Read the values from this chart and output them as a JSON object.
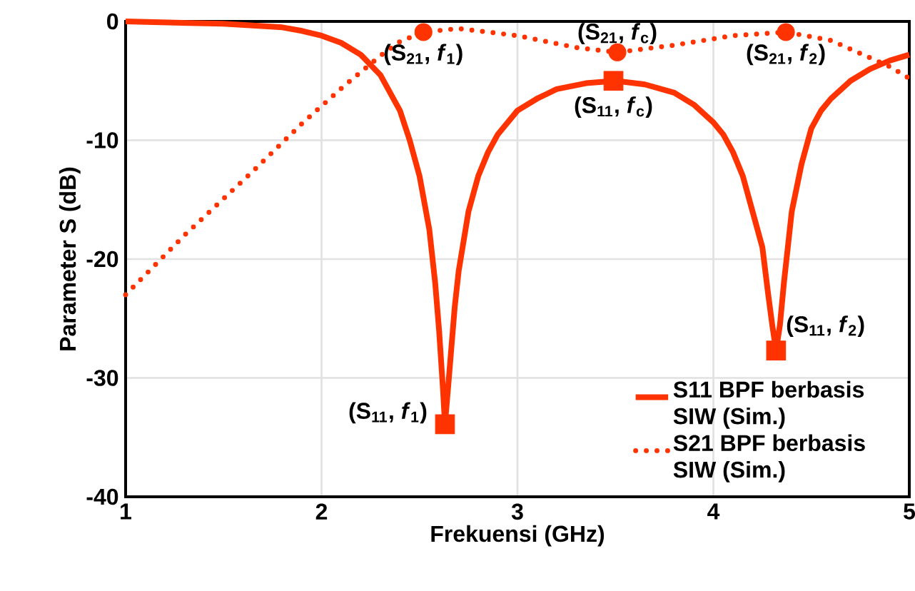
{
  "chart_data": {
    "type": "line",
    "xlabel": "Frekuensi (GHz)",
    "ylabel": "Parameter S (dB)",
    "xlim": [
      1,
      5
    ],
    "ylim": [
      -40,
      0
    ],
    "xticks": [
      1,
      2,
      3,
      4,
      5
    ],
    "yticks": [
      -40,
      -30,
      -20,
      -10,
      0
    ],
    "grid": true,
    "legend": "bottom right",
    "series": [
      {
        "name": "S11 BPF berbasis SIW (Sim.)",
        "color": "#ff3300",
        "line_style": "solid",
        "marker": "none",
        "x": [
          1,
          1.5,
          1.8,
          1.9,
          2.0,
          2.1,
          2.2,
          2.3,
          2.4,
          2.45,
          2.5,
          2.55,
          2.58,
          2.6,
          2.62,
          2.63,
          2.645,
          2.66,
          2.68,
          2.7,
          2.75,
          2.8,
          2.85,
          2.9,
          3.0,
          3.1,
          3.2,
          3.35,
          3.5,
          3.65,
          3.8,
          3.9,
          4.0,
          4.05,
          4.1,
          4.15,
          4.2,
          4.25,
          4.28,
          4.3,
          4.32,
          4.34,
          4.36,
          4.38,
          4.4,
          4.45,
          4.5,
          4.55,
          4.6,
          4.7,
          4.8,
          4.9,
          5.0
        ],
        "values": [
          0,
          -0.2,
          -0.5,
          -0.8,
          -1.2,
          -1.8,
          -2.8,
          -4.5,
          -7.5,
          -10,
          -13,
          -17.5,
          -22,
          -26,
          -31,
          -33.9,
          -31,
          -28,
          -24,
          -21,
          -16,
          -13,
          -11,
          -9.5,
          -7.5,
          -6.5,
          -5.7,
          -5.2,
          -5,
          -5.3,
          -6,
          -7,
          -8.5,
          -9.5,
          -11,
          -13,
          -16,
          -19,
          -23,
          -25.5,
          -27.7,
          -25.5,
          -22,
          -19,
          -16,
          -12,
          -9,
          -7.5,
          -6.5,
          -5,
          -4,
          -3.3,
          -2.8
        ]
      },
      {
        "name": "S21 BPF berbasis SIW (Sim.)",
        "color": "#ff3300",
        "line_style": "dotted",
        "marker": "none",
        "x": [
          1,
          1.3,
          1.65,
          1.9,
          2.11,
          2.3,
          2.4,
          2.52,
          2.7,
          3.0,
          3.3,
          3.51,
          3.8,
          4.1,
          4.37,
          4.6,
          4.9,
          5.0
        ],
        "values": [
          -23,
          -18,
          -12.6,
          -8.6,
          -5.5,
          -2.9,
          -1.7,
          -0.9,
          -0.6,
          -1.2,
          -2.2,
          -2.6,
          -2.0,
          -1.2,
          -0.9,
          -1.6,
          -3.8,
          -4.8
        ]
      },
      {
        "type": "scatter",
        "color": "#ff3300",
        "marker": "square",
        "x": [
          2.63,
          3.49,
          4.32
        ],
        "values": [
          -33.9,
          -5,
          -27.7
        ]
      },
      {
        "type": "scatter",
        "color": "#ff3300",
        "marker": "circle",
        "x": [
          2.52,
          3.51,
          4.37
        ],
        "values": [
          -0.9,
          -2.6,
          -0.9
        ]
      }
    ],
    "annotations": [
      {
        "text": "(S$_{21}$, *f*$_{1}$)",
        "x": 2.52,
        "y": -0.9
      },
      {
        "text": "(S$_{21}$, *f*$_{c}$)",
        "x": 3.51,
        "y": -2.6
      },
      {
        "text": "(S$_{21}$, *f*$_{2}$)",
        "x": 4.37,
        "y": -0.9
      },
      {
        "text": "(S$_{11}$, *f*$_{1}$)",
        "x": 2.63,
        "y": -33.9
      },
      {
        "text": "(S$_{11}$, *f*$_{c}$)",
        "x": 3.49,
        "y": -5
      },
      {
        "text": "(S$_{11}$, *f*$_{2}$)",
        "x": 4.32,
        "y": -27.7
      }
    ]
  }
}
